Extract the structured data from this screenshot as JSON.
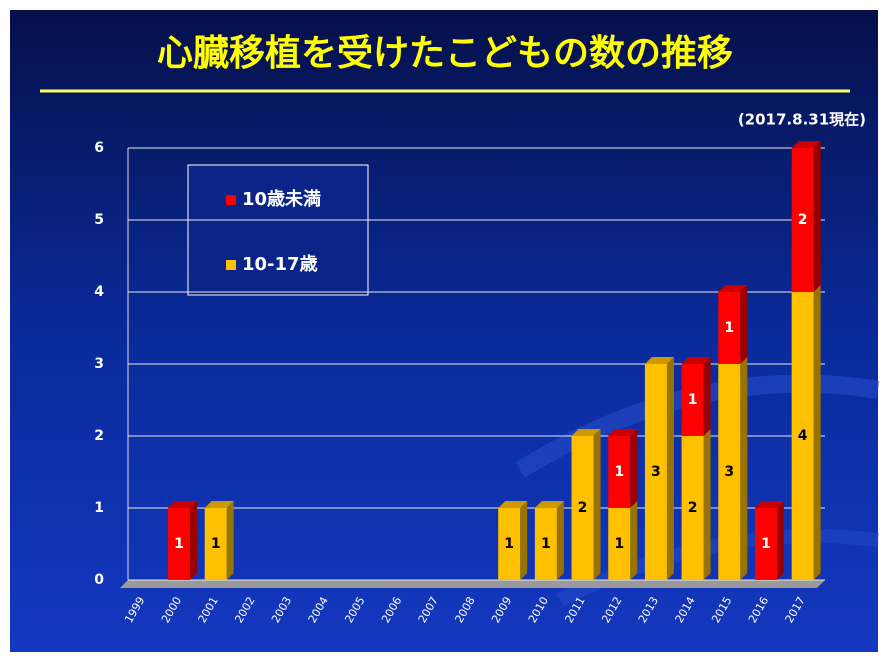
{
  "chart_data": {
    "type": "bar",
    "stacked": true,
    "title": "心臓移植を受けたこどもの数の推移",
    "subtitle": "(2017.8.31現在)",
    "categories": [
      "1999",
      "2000",
      "2001",
      "2002",
      "2003",
      "2004",
      "2005",
      "2006",
      "2007",
      "2008",
      "2009",
      "2010",
      "2011",
      "2012",
      "2013",
      "2014",
      "2015",
      "2016",
      "2017"
    ],
    "series": [
      {
        "name": "10-17歳",
        "color": "#ffc000",
        "values": [
          0,
          0,
          1,
          0,
          0,
          0,
          0,
          0,
          0,
          0,
          1,
          1,
          2,
          1,
          3,
          2,
          3,
          0,
          4
        ]
      },
      {
        "name": "10歳未満",
        "color": "#ff0000",
        "values": [
          0,
          1,
          0,
          0,
          0,
          0,
          0,
          0,
          0,
          0,
          0,
          0,
          0,
          1,
          0,
          1,
          1,
          1,
          2
        ]
      }
    ],
    "ylim": [
      0,
      6
    ],
    "yticks": [
      0,
      1,
      2,
      3,
      4,
      5,
      6
    ],
    "grid": true
  }
}
